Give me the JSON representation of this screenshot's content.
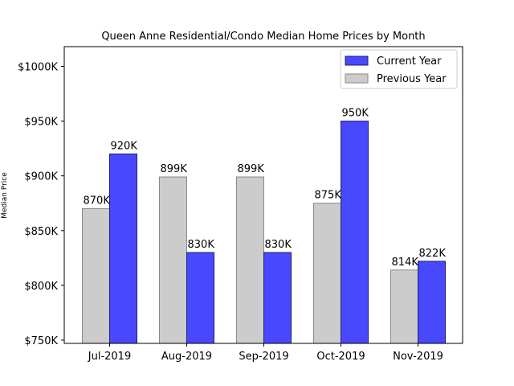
{
  "chart_data": {
    "type": "bar",
    "title": "Queen Anne Residential/Condo Median Home Prices by Month",
    "xlabel": "",
    "ylabel": "Median Price",
    "categories": [
      "Jul-2019",
      "Aug-2019",
      "Sep-2019",
      "Oct-2019",
      "Nov-2019"
    ],
    "series": [
      {
        "name": "Previous Year",
        "values": [
          870,
          899,
          899,
          875,
          814
        ],
        "labels": [
          "870K",
          "899K",
          "899K",
          "875K",
          "814K"
        ],
        "color": "#cccccc",
        "edge": "#888888"
      },
      {
        "name": "Current Year",
        "values": [
          920,
          830,
          830,
          950,
          822
        ],
        "labels": [
          "920K",
          "830K",
          "830K",
          "950K",
          "822K"
        ],
        "color": "#4848ff",
        "edge": "#222266"
      }
    ],
    "ylim": [
      747,
      1018
    ],
    "yticks": [
      750,
      800,
      850,
      900,
      950,
      1000
    ],
    "ytick_labels": [
      "$750K",
      "$800K",
      "$850K",
      "$900K",
      "$950K",
      "$1000K"
    ],
    "legend": {
      "position": "top-right",
      "entries": [
        "Current Year",
        "Previous Year"
      ]
    },
    "grid": false,
    "units": "thousands of dollars"
  }
}
